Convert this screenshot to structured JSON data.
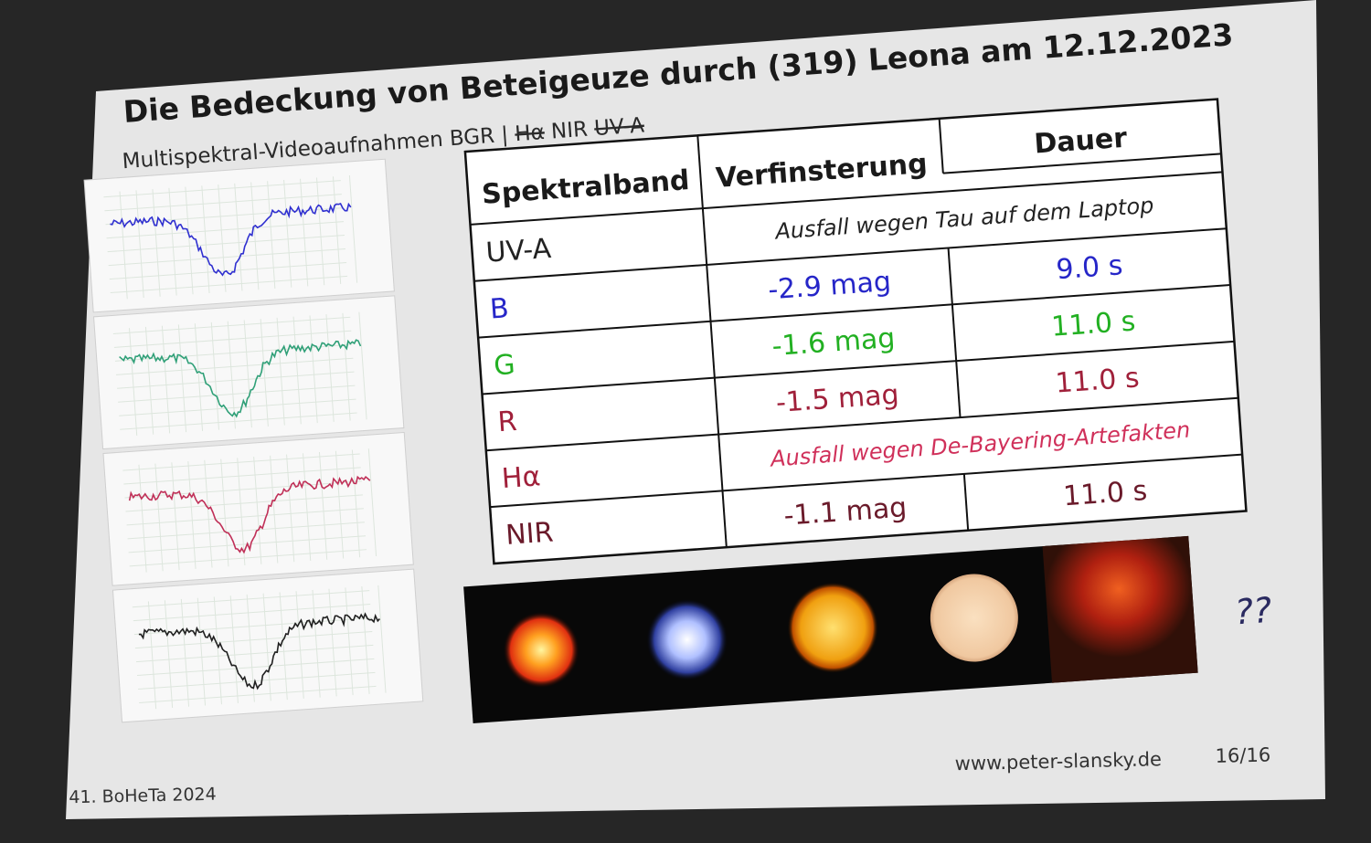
{
  "slide": {
    "title": "Die Bedeckung von Beteigeuze durch (319) Leona am 12.12.2023",
    "subtitle": [
      {
        "text": "Multispektral-Videoaufnahmen BGR | ",
        "struck": false
      },
      {
        "text": "Hα",
        "struck": true
      },
      {
        "text": " NIR ",
        "struck": false
      },
      {
        "text": "UV-A",
        "struck": true
      }
    ],
    "table": {
      "header": [
        "Spektralband",
        "Verfinsterung",
        "Dauer"
      ],
      "rows": [
        {
          "band": "UV-A",
          "note": "Ausfall wegen Tau auf dem Laptop",
          "color": "#222222",
          "note_color": "#222222"
        },
        {
          "band": "B",
          "darkening": "-2.9 mag",
          "duration": "9.0 s",
          "color": "#2626c8"
        },
        {
          "band": "G",
          "darkening": "-1.6 mag",
          "duration": "11.0 s",
          "color": "#22b022"
        },
        {
          "band": "R",
          "darkening": "-1.5 mag",
          "duration": "11.0 s",
          "color": "#a0203a"
        },
        {
          "band": "Hα",
          "note": "Ausfall wegen De-Bayering-Artefakten",
          "color": "#a0203a",
          "note_color": "#d0305a"
        },
        {
          "band": "NIR",
          "darkening": "-1.1 mag",
          "duration": "11.0 s",
          "color": "#6a1a2a"
        }
      ]
    },
    "question": "??",
    "footer": {
      "event": "41. BoHeTa 2024",
      "url": "www.peter-slansky.de",
      "page": "16/16"
    }
  }
}
